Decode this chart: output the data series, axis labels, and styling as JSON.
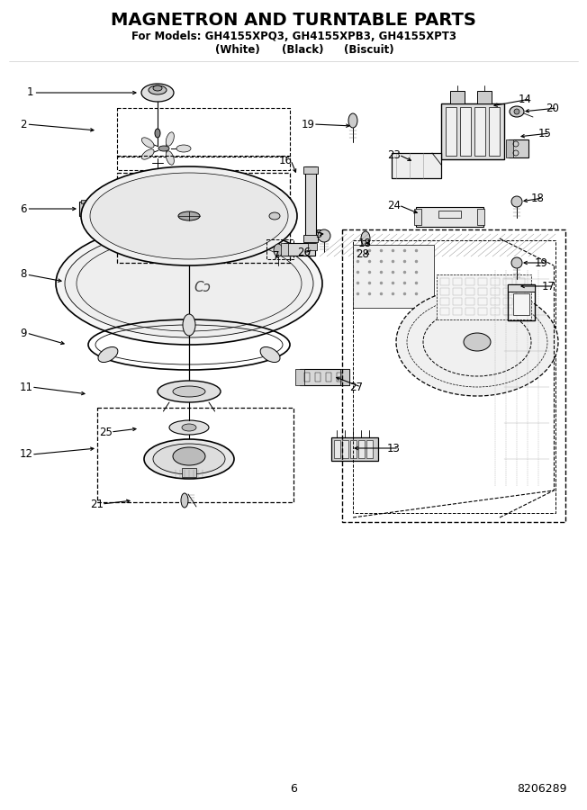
{
  "title": "MAGNETRON AND TURNTABLE PARTS",
  "subtitle1": "For Models: GH4155XPQ3, GH4155XPB3, GH4155XPT3",
  "subtitle2_white": "(White)",
  "subtitle2_black": "(Black)",
  "subtitle2_biscuit": "(Biscuit)",
  "page_number": "6",
  "doc_number": "8206289",
  "bg": "#ffffff",
  "fg": "#000000",
  "fig_width": 6.52,
  "fig_height": 9.0,
  "dpi": 100
}
